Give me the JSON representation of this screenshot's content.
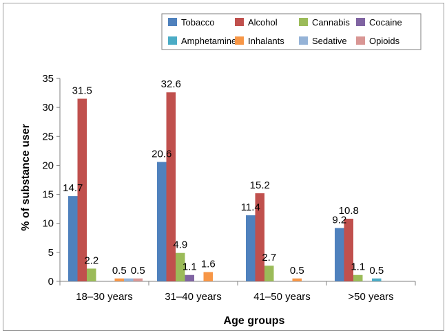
{
  "chart_data": {
    "type": "bar",
    "title": "",
    "xlabel": "Age groups",
    "ylabel": "% of substance user",
    "ylim": [
      0,
      35
    ],
    "yticks": [
      "0",
      "5",
      "10",
      "15",
      "20",
      "25",
      "30",
      "35"
    ],
    "grid": false,
    "legend_position": "top-right",
    "categories": [
      "18–30 years",
      "31–40 years",
      "41–50 years",
      ">50 years"
    ],
    "series": [
      {
        "name": "Tobacco",
        "color": "#4f81bd",
        "values": [
          14.7,
          20.6,
          11.4,
          9.2
        ],
        "labels": [
          "14.7",
          "20.6",
          "11.4",
          "9.2"
        ]
      },
      {
        "name": "Alcohol",
        "color": "#c0504d",
        "values": [
          31.5,
          32.6,
          15.2,
          10.8
        ],
        "labels": [
          "31.5",
          "32.6",
          "15.2",
          "10.8"
        ]
      },
      {
        "name": "Cannabis",
        "color": "#9bbb59",
        "values": [
          2.2,
          4.9,
          2.7,
          1.1
        ],
        "labels": [
          "2.2",
          "4.9",
          "2.7",
          "1.1"
        ]
      },
      {
        "name": "Cocaine",
        "color": "#8064a2",
        "values": [
          0,
          1.1,
          0,
          0
        ],
        "labels": [
          "",
          "1.1",
          "",
          ""
        ]
      },
      {
        "name": "Amphetamine",
        "color": "#4bacc6",
        "values": [
          0,
          0,
          0,
          0.5
        ],
        "labels": [
          "",
          "",
          "",
          "0.5"
        ]
      },
      {
        "name": "Inhalants",
        "color": "#f79646",
        "values": [
          0.5,
          1.6,
          0.5,
          0
        ],
        "labels": [
          "0.5",
          "1.6",
          "0.5",
          ""
        ]
      },
      {
        "name": "Sedative",
        "color": "#95b3d7",
        "values": [
          0.5,
          0,
          0,
          0
        ],
        "labels": [
          "",
          "",
          "",
          ""
        ]
      },
      {
        "name": "Opioids",
        "color": "#d99694",
        "values": [
          0.5,
          0,
          0,
          0
        ],
        "labels": [
          "0.5",
          "",
          "",
          ""
        ]
      }
    ]
  }
}
